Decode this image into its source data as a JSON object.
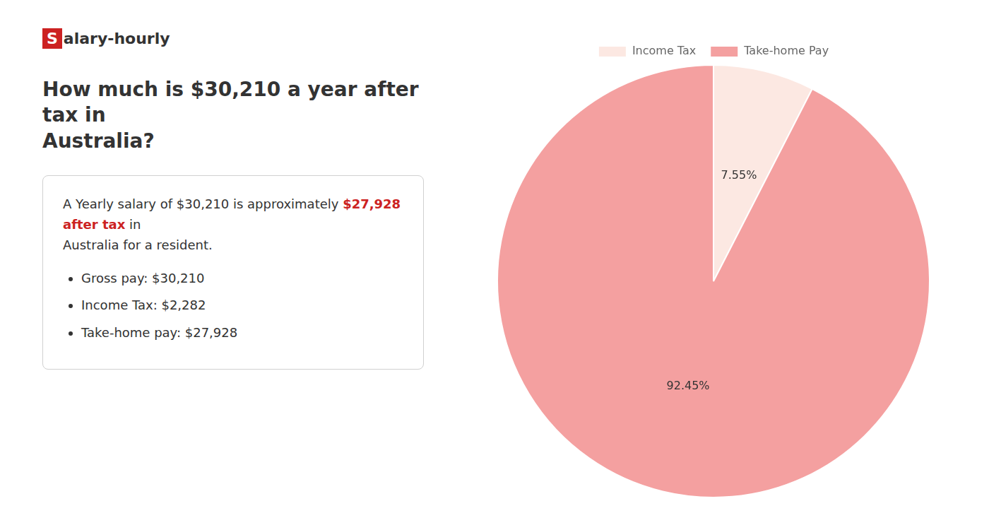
{
  "chart_data": {
    "type": "pie",
    "title": [
      "How much is $30,210 a year after tax in",
      "Australia?"
    ],
    "categories": [
      "Income Tax",
      "Take-home Pay"
    ],
    "values": [
      7.55,
      92.45
    ],
    "colors": [
      "#fce8e2",
      "#f4a0a0"
    ],
    "data_labels": true,
    "value_labels": [
      "7.55%",
      "92.45%"
    ],
    "legend": "top",
    "annotations": [
      {
        "text": "S",
        "color": "#cc2222"
      },
      {
        "text": "alary-hourly"
      },
      {
        "text": "A Yearly salary of $30,210 is approximately "
      },
      {
        "text": "$27,928 after tax",
        "color": "#cc2222"
      },
      {
        "text": " in"
      },
      {
        "text": "Australia for a resident."
      },
      {
        "text": "Gross pay: $30,210"
      },
      {
        "text": "Income Tax: $2,282"
      },
      {
        "text": "Take-home pay: $27,928"
      }
    ]
  }
}
